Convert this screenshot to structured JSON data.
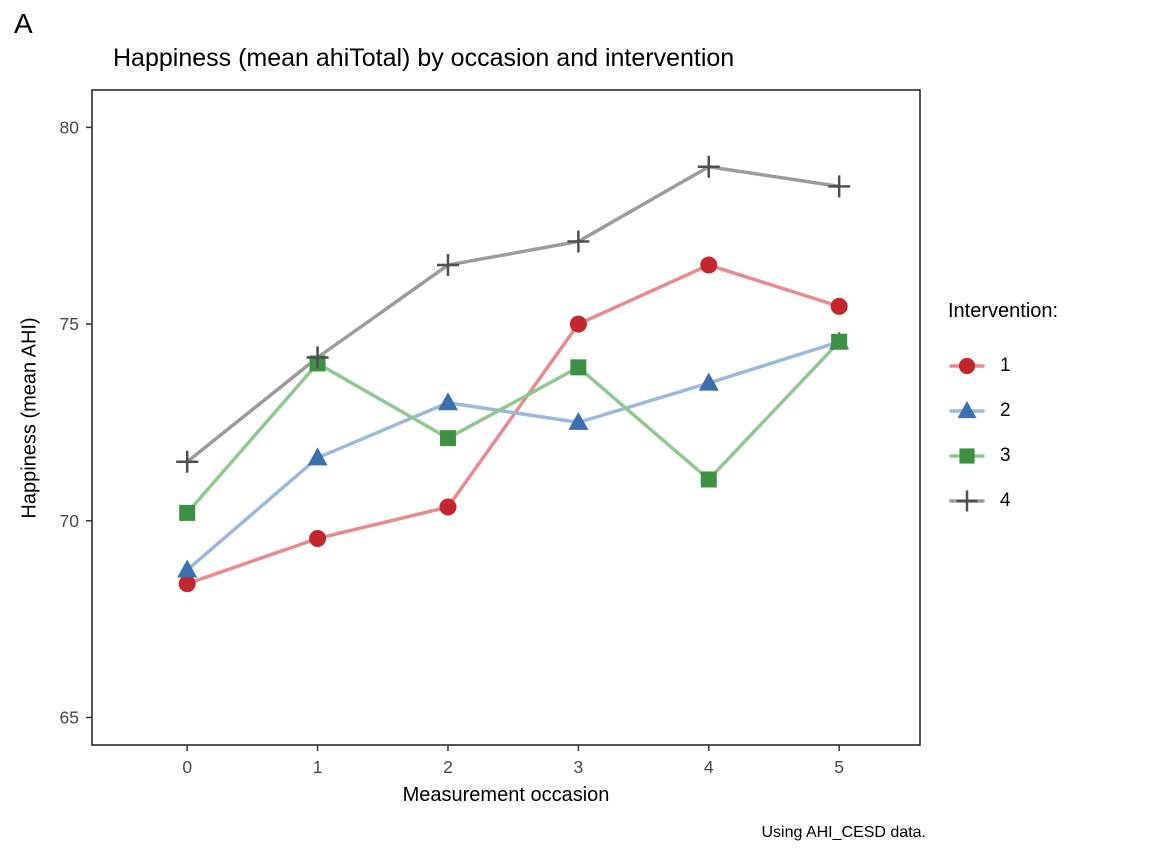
{
  "panel_label": "A",
  "chart_data": {
    "type": "line",
    "title": "Happiness (mean ahiTotal) by occasion and intervention",
    "xlabel": "Measurement occasion",
    "ylabel": "Happiness (mean AHI)",
    "caption": "Using AHI_CESD data.",
    "legend_title": "Intervention:",
    "legend_position": "right",
    "grid": false,
    "x": [
      0,
      1,
      2,
      3,
      4,
      5
    ],
    "xticks": [
      0,
      1,
      2,
      3,
      4,
      5
    ],
    "yticks": [
      65,
      70,
      75,
      80
    ],
    "xlim": [
      -0.73,
      5.62
    ],
    "ylim": [
      64.3,
      80.95
    ],
    "series": [
      {
        "name": "1",
        "marker": "circle",
        "point_color": "#c2262e",
        "line_color": "#e88b8d",
        "values": [
          68.4,
          69.55,
          70.35,
          75.0,
          76.5,
          75.45
        ]
      },
      {
        "name": "2",
        "marker": "triangle",
        "point_color": "#3f6fae",
        "line_color": "#9ab9dc",
        "values": [
          68.75,
          71.6,
          73.0,
          72.5,
          73.5,
          74.55
        ]
      },
      {
        "name": "3",
        "marker": "square",
        "point_color": "#3e9142",
        "line_color": "#90c88f",
        "values": [
          70.2,
          74.0,
          72.1,
          73.9,
          71.05,
          74.55
        ]
      },
      {
        "name": "4",
        "marker": "plus",
        "point_color": "#4f4f4f",
        "line_color": "#9c9c9c",
        "values": [
          71.5,
          74.15,
          76.5,
          77.1,
          79.0,
          78.5
        ]
      }
    ]
  }
}
